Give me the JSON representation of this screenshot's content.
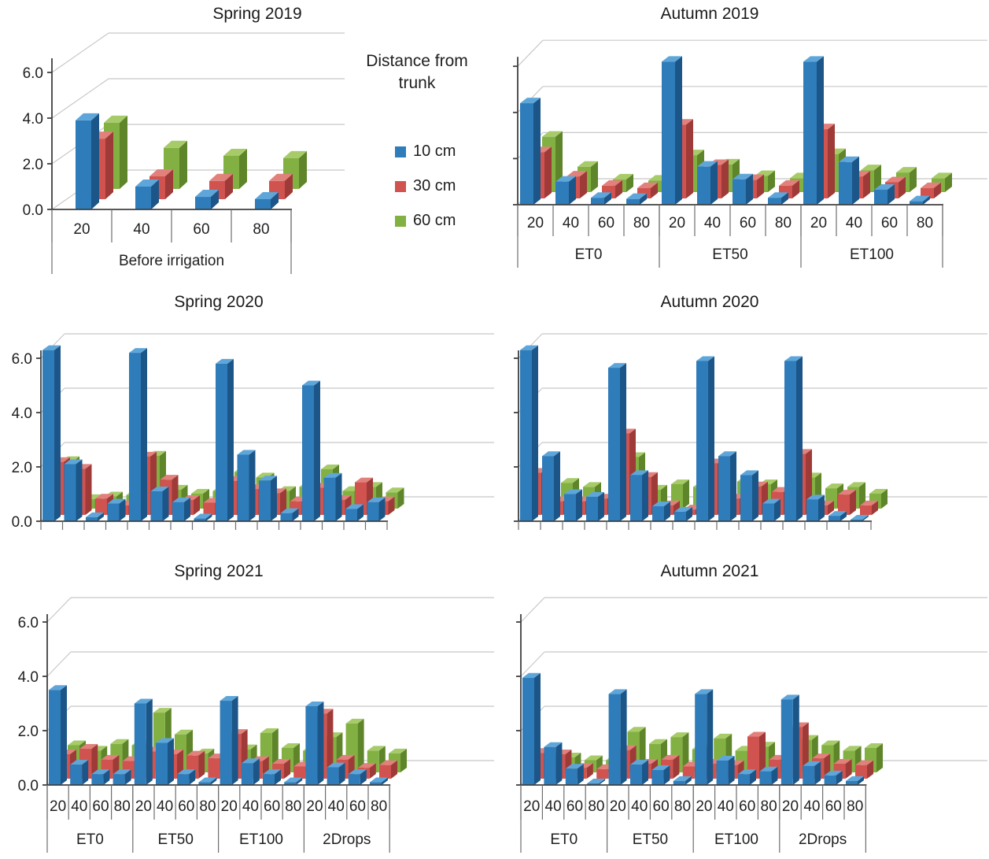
{
  "page": {
    "background": "#FFFFFF"
  },
  "legend": {
    "title": "Distance from trunk",
    "items": [
      {
        "label": "10 cm",
        "color": "#2E7CBA"
      },
      {
        "label": "30 cm",
        "color": "#D05350"
      },
      {
        "label": "60 cm",
        "color": "#83B042"
      }
    ]
  },
  "palette": {
    "10 cm": {
      "front": "#2E7CBA",
      "top": "#5EA6DA",
      "side": "#1C5688"
    },
    "30 cm": {
      "front": "#D05350",
      "top": "#E2807B",
      "side": "#9E3A37"
    },
    "60 cm": {
      "front": "#83B042",
      "top": "#A6CB68",
      "side": "#5E8529"
    }
  },
  "colors": {
    "grid": "#C8C8C8",
    "axis": "#3F3F3F",
    "label_lines": "#6E6E6E",
    "text": "#1F1F1F"
  },
  "chart_data": [
    {
      "id": "spring-2019",
      "title": "Spring 2019",
      "type": "bar",
      "style": "3d-clustered",
      "ylim": [
        0,
        6
      ],
      "yticks": [
        0,
        2,
        4,
        6
      ],
      "ytick_labels": [
        "0.0",
        "2.0",
        "4.0",
        "6.0"
      ],
      "distances": [
        "20",
        "40",
        "60",
        "80"
      ],
      "groups": [
        "Before irrigation"
      ],
      "series": [
        {
          "name": "10 cm",
          "values": [
            3.9,
            1.0,
            0.55,
            0.45
          ]
        },
        {
          "name": "30 cm",
          "values": [
            2.65,
            1.0,
            0.8,
            0.8
          ]
        },
        {
          "name": "60 cm",
          "values": [
            2.9,
            1.8,
            1.45,
            1.35
          ]
        }
      ]
    },
    {
      "id": "autumn-2019",
      "title": "Autumn 2019",
      "type": "bar",
      "style": "3d-clustered",
      "ylim": [
        0,
        6
      ],
      "yticks": [
        0,
        2,
        4,
        6
      ],
      "ytick_labels": [],
      "distances": [
        "20",
        "40",
        "60",
        "80"
      ],
      "groups": [
        "ET0",
        "ET50",
        "ET100"
      ],
      "series": [
        {
          "name": "10 cm",
          "values": [
            4.4,
            1.0,
            0.3,
            0.25,
            6.2,
            1.65,
            1.1,
            0.3,
            6.2,
            1.85,
            0.65,
            0.15
          ]
        },
        {
          "name": "30 cm",
          "values": [
            2.0,
            0.95,
            0.55,
            0.45,
            3.2,
            1.45,
            0.8,
            0.55,
            3.0,
            0.95,
            0.7,
            0.45
          ]
        },
        {
          "name": "60 cm",
          "values": [
            2.4,
            1.1,
            0.55,
            0.5,
            1.6,
            1.2,
            0.7,
            0.6,
            1.65,
            0.95,
            0.85,
            0.6
          ]
        }
      ]
    },
    {
      "id": "spring-2020",
      "title": "Spring 2020",
      "type": "bar",
      "style": "3d-clustered",
      "ylim": [
        0,
        6
      ],
      "yticks": [
        0,
        2,
        4,
        6
      ],
      "ytick_labels": [
        "0.0",
        "2.0",
        "4.0",
        "6.0"
      ],
      "distances": [],
      "groups": [],
      "series": [
        {
          "name": "10 cm",
          "values": [
            6.3,
            2.1,
            0.15,
            0.65,
            6.2,
            1.1,
            0.7,
            0.1,
            5.8,
            2.45,
            1.5,
            0.3,
            5.0,
            1.6,
            0.45,
            0.7
          ]
        },
        {
          "name": "30 cm",
          "values": [
            1.95,
            1.7,
            0.6,
            0.35,
            2.15,
            1.3,
            0.55,
            0.45,
            1.25,
            0.95,
            0.8,
            0.5,
            1.0,
            0.55,
            1.2,
            0.5
          ]
        },
        {
          "name": "60 cm",
          "values": [
            1.75,
            0.35,
            0.45,
            0.5,
            1.95,
            0.7,
            0.55,
            0.65,
            1.35,
            1.15,
            0.65,
            0.8,
            1.45,
            0.65,
            0.8,
            0.6
          ]
        }
      ]
    },
    {
      "id": "autumn-2020",
      "title": "Autumn 2020",
      "type": "bar",
      "style": "3d-clustered",
      "ylim": [
        0,
        6
      ],
      "yticks": [
        0,
        2,
        4,
        6
      ],
      "ytick_labels": [],
      "distances": [],
      "groups": [],
      "series": [
        {
          "name": "10 cm",
          "values": [
            6.3,
            2.4,
            1.0,
            0.9,
            5.65,
            1.7,
            0.55,
            0.35,
            5.9,
            2.4,
            1.7,
            0.65,
            5.9,
            0.8,
            0.2,
            0.05
          ]
        },
        {
          "name": "30 cm",
          "values": [
            1.55,
            0.5,
            0.5,
            0.6,
            3.0,
            1.4,
            0.35,
            0.2,
            1.9,
            0.6,
            1.05,
            0.85,
            2.25,
            0.35,
            0.75,
            0.35
          ]
        },
        {
          "name": "60 cm",
          "values": [
            1.35,
            0.95,
            0.8,
            0.45,
            1.9,
            0.7,
            0.9,
            0.8,
            1.1,
            1.0,
            0.9,
            0.5,
            1.15,
            0.75,
            0.8,
            0.55
          ]
        }
      ]
    },
    {
      "id": "spring-2021",
      "title": "Spring 2021",
      "type": "bar",
      "style": "3d-clustered",
      "ylim": [
        0,
        6
      ],
      "yticks": [
        0,
        2,
        4,
        6
      ],
      "ytick_labels": [
        "0.0",
        "2.0",
        "4.0",
        "6.0"
      ],
      "distances": [
        "20",
        "40",
        "60",
        "80"
      ],
      "groups": [
        "ET0",
        "ET50",
        "ET100",
        "2Drops"
      ],
      "series": [
        {
          "name": "10 cm",
          "values": [
            3.5,
            0.75,
            0.4,
            0.4,
            3.0,
            1.55,
            0.4,
            0.1,
            3.1,
            0.8,
            0.4,
            0.1,
            2.9,
            0.65,
            0.4,
            0.1
          ]
        },
        {
          "name": "30 cm",
          "values": [
            0.9,
            1.1,
            0.7,
            0.65,
            1.0,
            0.9,
            0.85,
            0.75,
            1.65,
            0.65,
            0.55,
            0.45,
            2.4,
            0.7,
            0.4,
            0.5
          ]
        },
        {
          "name": "60 cm",
          "values": [
            1.0,
            0.8,
            1.05,
            1.0,
            2.2,
            1.4,
            0.7,
            0.55,
            0.85,
            1.45,
            0.9,
            0.8,
            1.3,
            1.8,
            0.8,
            0.7
          ]
        }
      ]
    },
    {
      "id": "autumn-2021",
      "title": "Autumn 2021",
      "type": "bar",
      "style": "3d-clustered",
      "ylim": [
        0,
        6
      ],
      "yticks": [
        0,
        2,
        4,
        6
      ],
      "ytick_labels": [],
      "distances": [
        "20",
        "40",
        "60",
        "80"
      ],
      "groups": [
        "ET0",
        "ET50",
        "ET100",
        "2Drops"
      ],
      "series": [
        {
          "name": "10 cm",
          "values": [
            3.95,
            1.4,
            0.6,
            0.05,
            3.35,
            0.75,
            0.55,
            0.15,
            3.35,
            0.9,
            0.4,
            0.5,
            3.15,
            0.7,
            0.35,
            0.15
          ]
        },
        {
          "name": "30 cm",
          "values": [
            0.95,
            0.9,
            0.4,
            0.35,
            1.05,
            0.55,
            0.7,
            0.45,
            0.55,
            0.5,
            1.55,
            0.7,
            1.9,
            0.75,
            0.55,
            0.5
          ]
        },
        {
          "name": "60 cm",
          "values": [
            0.6,
            0.55,
            0.45,
            0.45,
            1.5,
            1.05,
            1.3,
            0.85,
            1.25,
            0.8,
            0.95,
            0.5,
            1.2,
            1.0,
            0.8,
            0.9
          ]
        }
      ]
    }
  ]
}
